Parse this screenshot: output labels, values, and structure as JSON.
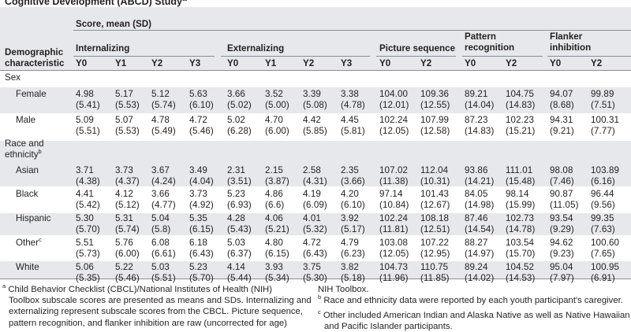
{
  "title": "Cognitive Development (ABCD) Study",
  "title_sup": "a",
  "header": {
    "score_label": "Score, mean (SD)",
    "demo_label_1": "Demographic",
    "demo_label_2": "characteristic",
    "groups": [
      {
        "label": "Internalizing",
        "label2": ""
      },
      {
        "label": "Externalizing",
        "label2": ""
      },
      {
        "label": "Picture sequence",
        "label2": ""
      },
      {
        "label": "Pattern",
        "label2": "recognition"
      },
      {
        "label": "Flanker",
        "label2": "inhibition"
      }
    ],
    "years": [
      "Y0",
      "Y1",
      "Y2",
      "Y3",
      "Y0",
      "Y1",
      "Y2",
      "Y3",
      "Y0",
      "Y2",
      "Y0",
      "Y2",
      "Y0",
      "Y2"
    ]
  },
  "sections": [
    {
      "label": "Sex",
      "label2": "",
      "sup": ""
    },
    {
      "label": "Race and",
      "label2": "ethnicity",
      "sup": "b"
    }
  ],
  "rows": [
    {
      "label": "Female",
      "sup": "",
      "cells": [
        [
          "4.98",
          "(5.41)"
        ],
        [
          "5.17",
          "(5.53)"
        ],
        [
          "5.12",
          "(5.74)"
        ],
        [
          "5.63",
          "(6.10)"
        ],
        [
          "3.66",
          "(5.02)"
        ],
        [
          "3.52",
          "(5.00)"
        ],
        [
          "3.39",
          "(5.08)"
        ],
        [
          "3.38",
          "(4.78)"
        ],
        [
          "104.00",
          "(12.01)"
        ],
        [
          "109.36",
          "(12.55)"
        ],
        [
          "89.21",
          "(14.04)"
        ],
        [
          "104.75",
          "(14.83)"
        ],
        [
          "94.07",
          "(8.68)"
        ],
        [
          "99.89",
          "(7.51)"
        ]
      ]
    },
    {
      "label": "Male",
      "sup": "",
      "cells": [
        [
          "5.09",
          "(5.51)"
        ],
        [
          "5.07",
          "(5.53)"
        ],
        [
          "4.78",
          "(5.49)"
        ],
        [
          "4.72",
          "(5.46)"
        ],
        [
          "5.02",
          "(6.28)"
        ],
        [
          "4.70",
          "(6.00)"
        ],
        [
          "4.42",
          "(5.85)"
        ],
        [
          "4.45",
          "(5.81)"
        ],
        [
          "102.24",
          "(12.05)"
        ],
        [
          "107.99",
          "(12.58)"
        ],
        [
          "87.23",
          "(14.83)"
        ],
        [
          "102.23",
          "(15.21)"
        ],
        [
          "94.31",
          "(9.21)"
        ],
        [
          "100.31",
          "(7.77)"
        ]
      ]
    },
    {
      "label": "Asian",
      "sup": "",
      "cells": [
        [
          "3.71",
          "(4.38)"
        ],
        [
          "3.73",
          "(4.37)"
        ],
        [
          "3.67",
          "(4.24)"
        ],
        [
          "3.49",
          "(4.04)"
        ],
        [
          "2.31",
          "(3.51)"
        ],
        [
          "2.15",
          "(3.87)"
        ],
        [
          "2.58",
          "(4.31)"
        ],
        [
          "2.35",
          "(3.66)"
        ],
        [
          "107.02",
          "(11.38)"
        ],
        [
          "112.04",
          "(10.31)"
        ],
        [
          "93.86",
          "(14.21)"
        ],
        [
          "111.01",
          "(15.48)"
        ],
        [
          "98.08",
          "(7.46)"
        ],
        [
          "103.89",
          "(6.16)"
        ]
      ]
    },
    {
      "label": "Black",
      "sup": "",
      "cells": [
        [
          "4.41",
          "(5.42)"
        ],
        [
          "4.12",
          "(5.12)"
        ],
        [
          "3.66",
          "(4.77)"
        ],
        [
          "3.73",
          "(4.92)"
        ],
        [
          "5.23",
          "(6.93)"
        ],
        [
          "4.86",
          "(6.6)"
        ],
        [
          "4.19",
          "(6.09)"
        ],
        [
          "4.20",
          "(6.10)"
        ],
        [
          "97.14",
          "(10.84)"
        ],
        [
          "101.43",
          "(12.67)"
        ],
        [
          "84.05",
          "(14.98)"
        ],
        [
          "98.14",
          "(15.99)"
        ],
        [
          "90.87",
          "(11.05)"
        ],
        [
          "96.44",
          "(9.56)"
        ]
      ]
    },
    {
      "label": "Hispanic",
      "sup": "",
      "cells": [
        [
          "5.30",
          "(5.70)"
        ],
        [
          "5.31",
          "(5.74)"
        ],
        [
          "5.04",
          "(5.8)"
        ],
        [
          "5.35",
          "(6.15)"
        ],
        [
          "4.28",
          "(5.43)"
        ],
        [
          "4.06",
          "(5.21)"
        ],
        [
          "4.01",
          "(5.32)"
        ],
        [
          "3.92",
          "(5.17)"
        ],
        [
          "102.24",
          "(11.81)"
        ],
        [
          "108.18",
          "(12.51)"
        ],
        [
          "87.46",
          "(14.54)"
        ],
        [
          "102.73",
          "(14.78)"
        ],
        [
          "93.54",
          "(9.29)"
        ],
        [
          "99.35",
          "(7.63)"
        ]
      ]
    },
    {
      "label": "Other",
      "sup": "c",
      "cells": [
        [
          "5.51",
          "(5.73)"
        ],
        [
          "5.76",
          "(6.00)"
        ],
        [
          "6.08",
          "(6.61)"
        ],
        [
          "6.18",
          "(6.43)"
        ],
        [
          "5.03",
          "(6.37)"
        ],
        [
          "4.80",
          "(6.15)"
        ],
        [
          "4.72",
          "(6.43)"
        ],
        [
          "4.79",
          "(6.23)"
        ],
        [
          "103.08",
          "(12.05)"
        ],
        [
          "107.22",
          "(12.95)"
        ],
        [
          "88.27",
          "(14.97)"
        ],
        [
          "103.54",
          "(15.70)"
        ],
        [
          "94.62",
          "(9.23)"
        ],
        [
          "100.60",
          "(7.65)"
        ]
      ]
    },
    {
      "label": "White",
      "sup": "",
      "cells": [
        [
          "5.06",
          "(5.35)"
        ],
        [
          "5.22",
          "(5.46)"
        ],
        [
          "5.03",
          "(5.51)"
        ],
        [
          "5.23",
          "(5.70)"
        ],
        [
          "4.14",
          "(5.44)"
        ],
        [
          "3.93",
          "(5.34)"
        ],
        [
          "3.75",
          "(5.30)"
        ],
        [
          "3.82",
          "(5.18)"
        ],
        [
          "104.73",
          "(11.96)"
        ],
        [
          "110.75",
          "(11.85)"
        ],
        [
          "89.24",
          "(14.02)"
        ],
        [
          "104.52",
          "(14.53)"
        ],
        [
          "95.04",
          "(7.97)"
        ],
        [
          "100.95",
          "(6.91)"
        ]
      ]
    }
  ],
  "footnotes": {
    "a_mark": "a",
    "a_lines": [
      "Child Behavior Checklist (CBCL)/National Institutes of Health (NIH)",
      "Toolbox subscale scores are presented as means and SDs. Internalizing and",
      "externalizing represent subscale scores from the CBCL. Picture sequence,",
      "pattern recognition, and flanker inhibition are raw (uncorrected for age)"
    ],
    "a_cont": "NIH Toolbox.",
    "b_mark": "b",
    "b_text": "Race and ethnicity data were reported by each youth participant's caregiver.",
    "c_mark": "c",
    "c_lines": [
      "Other included American Indian and Alaska Native as well as Native Hawaiian",
      "and Pacific Islander participants."
    ]
  }
}
